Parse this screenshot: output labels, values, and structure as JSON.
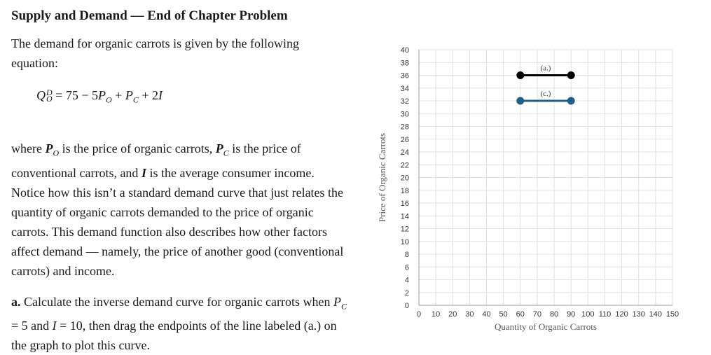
{
  "header": {
    "title": "Supply and Demand — End of Chapter Problem"
  },
  "intro": {
    "text": "The demand for organic carrots is given by the following equation:"
  },
  "equation": {
    "q_symbol": "Q",
    "q_sup": "D",
    "q_sub": "O",
    "rest": " = 75 − 5",
    "po": "P",
    "po_sub": "O",
    "plus1": " + ",
    "pc": "P",
    "pc_sub": "C",
    "plus2": " + 2",
    "income": "I"
  },
  "description": {
    "part1": "where ",
    "po": "P",
    "po_sub": "O",
    "part2": " is the price of organic carrots, ",
    "pc": "P",
    "pc_sub": "C",
    "part3": " is the price of conventional carrots, and ",
    "income": "I",
    "part4": " is the average consumer income. Notice how this isn’t a standard demand curve that just relates the quantity of organic carrots demanded to the price of organic carrots. This demand function also describes how other factors affect demand — namely, the price of another good (conventional carrots) and income."
  },
  "question_a": {
    "label": "a.",
    "part1": " Calculate the inverse demand curve for organic carrots when ",
    "pc": "P",
    "pc_sub": "C",
    "part2": " = 5 and ",
    "income": "I",
    "part3": " = 10, then drag the endpoints of the line labeled (a.) on the graph to plot this curve."
  },
  "chart_data": {
    "type": "line",
    "xlabel": "Quantity of Organic Carrots",
    "ylabel": "Price of Organic Carrots",
    "xlim": [
      0,
      150
    ],
    "ylim": [
      0,
      40
    ],
    "x_ticks": [
      0,
      10,
      20,
      30,
      40,
      50,
      60,
      70,
      80,
      90,
      100,
      110,
      120,
      130,
      140,
      150
    ],
    "y_ticks": [
      0,
      2,
      4,
      6,
      8,
      10,
      12,
      14,
      16,
      18,
      20,
      22,
      24,
      26,
      28,
      30,
      32,
      34,
      36,
      38,
      40
    ],
    "grid": true,
    "series": [
      {
        "name": "(a.)",
        "color": "#000000",
        "points": [
          [
            60,
            36
          ],
          [
            90,
            36
          ]
        ]
      },
      {
        "name": "(c.)",
        "color": "#1f5f86",
        "points": [
          [
            60,
            32
          ],
          [
            90,
            32
          ]
        ]
      }
    ]
  }
}
